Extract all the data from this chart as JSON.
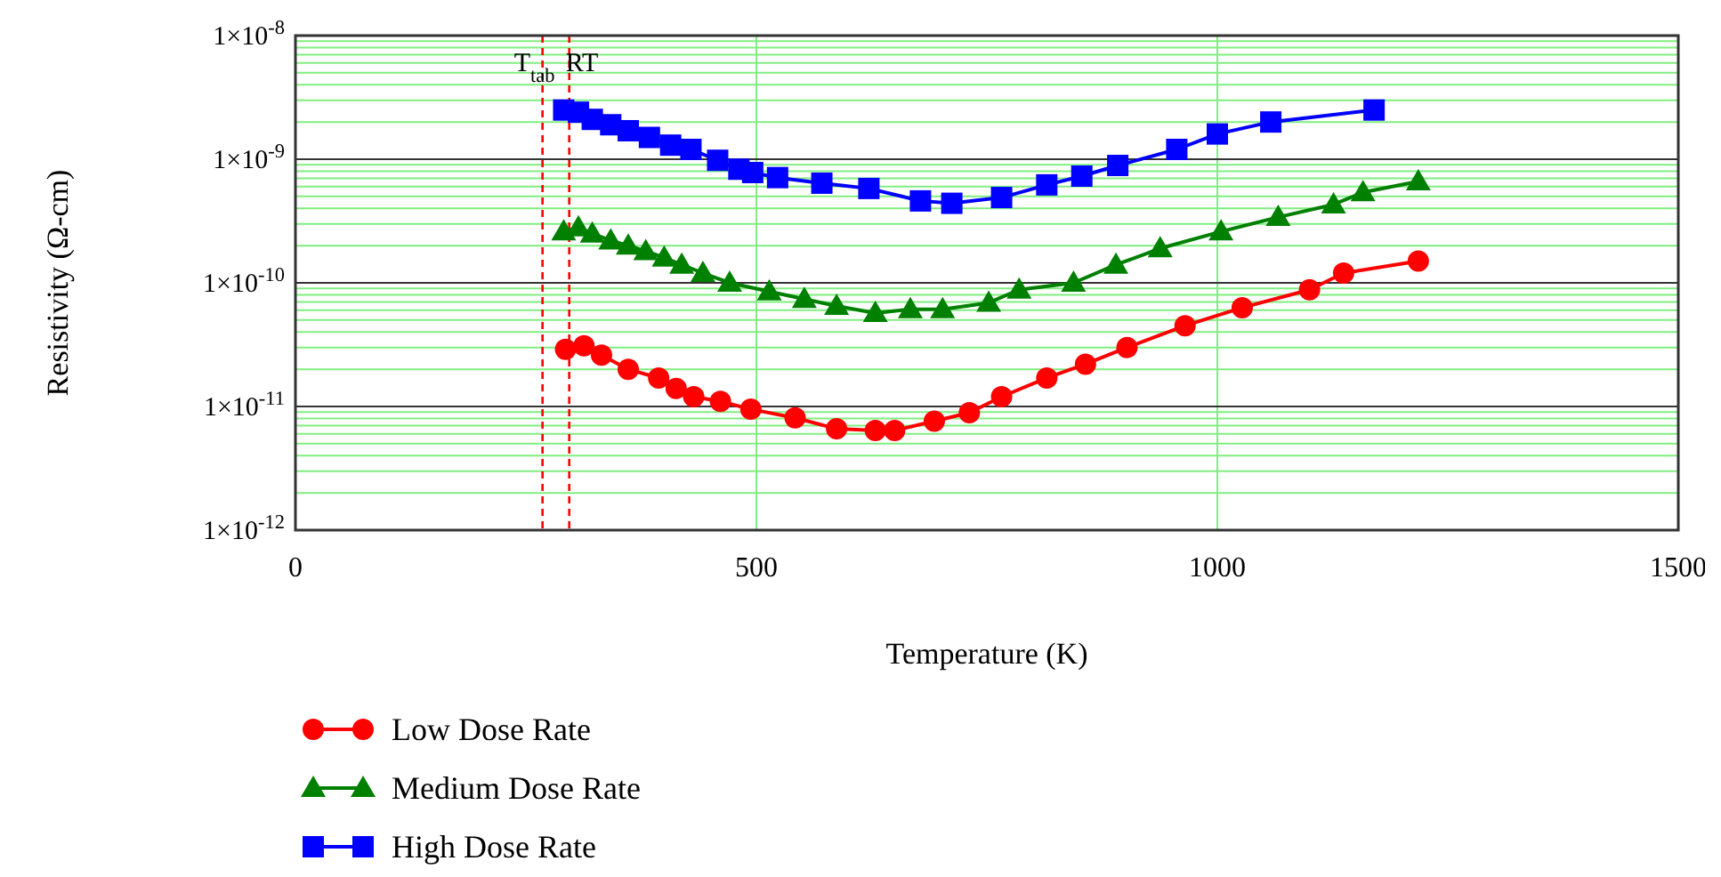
{
  "chart_data": {
    "type": "line",
    "xlabel": "Temperature (K)",
    "ylabel": "Resistivity (Ω-cm)",
    "log": "y",
    "grid": true,
    "legend": "bottom left",
    "xlim": [
      0,
      1500
    ],
    "xticks": [
      0,
      500,
      1000,
      1500
    ],
    "ylim": [
      1e-12,
      1e-08
    ],
    "yticks": [
      {
        "value": 1e-12,
        "label": "1×10$^{-12}$"
      },
      {
        "value": 1e-11,
        "label": "1×10$^{-11}$"
      },
      {
        "value": 1e-10,
        "label": "1×10$^{-10}$"
      },
      {
        "value": 1e-09,
        "label": "1×10$^{-9}$"
      },
      {
        "value": 1e-08,
        "label": "1×10$^{-8}$"
      }
    ],
    "ref_lines": [
      {
        "axis": "x",
        "value": 268,
        "label": "T$_{tab}$",
        "color": "#ff0000",
        "line_style": "dashed"
      },
      {
        "axis": "x",
        "value": 297,
        "label": "RT",
        "color": "#ff0000",
        "line_style": "dashed"
      }
    ],
    "series": [
      {
        "name": "Low Dose Rate",
        "color": "#ff0000",
        "marker": "circle",
        "x": [
          293,
          313,
          332,
          361,
          394,
          413,
          432,
          461,
          494,
          542,
          587,
          629,
          650,
          693,
          731,
          766,
          815,
          857,
          902,
          965,
          1027,
          1100,
          1137,
          1218
        ],
        "values": [
          2.9e-11,
          3.1e-11,
          2.6e-11,
          2e-11,
          1.7e-11,
          1.4e-11,
          1.2e-11,
          1.1e-11,
          9.5e-12,
          8.1e-12,
          6.6e-12,
          6.4e-12,
          6.4e-12,
          7.6e-12,
          8.9e-12,
          1.2e-11,
          1.7e-11,
          2.2e-11,
          3e-11,
          4.5e-11,
          6.3e-11,
          8.8e-11,
          1.2e-10,
          1.5e-10
        ]
      },
      {
        "name": "Medium Dose Rate",
        "color": "#008000",
        "marker": "triangle",
        "x": [
          291,
          307,
          322,
          342,
          361,
          380,
          400,
          419,
          442,
          471,
          514,
          552,
          587,
          629,
          667,
          702,
          752,
          785,
          844,
          890,
          938,
          1004,
          1066,
          1126,
          1158,
          1218
        ],
        "values": [
          2.6e-10,
          2.8e-10,
          2.5e-10,
          2.2e-10,
          2e-10,
          1.8e-10,
          1.6e-10,
          1.4e-10,
          1.2e-10,
          1e-10,
          8.5e-11,
          7.4e-11,
          6.5e-11,
          5.7e-11,
          6.1e-11,
          6.1e-11,
          6.9e-11,
          8.8e-11,
          1e-10,
          1.4e-10,
          1.9e-10,
          2.6e-10,
          3.4e-10,
          4.3e-10,
          5.4e-10,
          6.6e-10
        ]
      },
      {
        "name": "High Dose Rate",
        "color": "#0000ff",
        "marker": "square",
        "x": [
          291,
          307,
          322,
          342,
          361,
          384,
          407,
          429,
          458,
          481,
          496,
          523,
          571,
          622,
          678,
          712,
          766,
          815,
          853,
          892,
          956,
          1000,
          1058,
          1170
        ],
        "values": [
          2.5e-09,
          2.4e-09,
          2.1e-09,
          1.9e-09,
          1.7e-09,
          1.5e-09,
          1.3e-09,
          1.2e-09,
          9.8e-10,
          8.3e-10,
          7.8e-10,
          7.1e-10,
          6.4e-10,
          5.8e-10,
          4.6e-10,
          4.4e-10,
          4.9e-10,
          6.2e-10,
          7.3e-10,
          8.9e-10,
          1.2e-09,
          1.6e-09,
          2e-09,
          2.5e-09
        ]
      }
    ]
  }
}
